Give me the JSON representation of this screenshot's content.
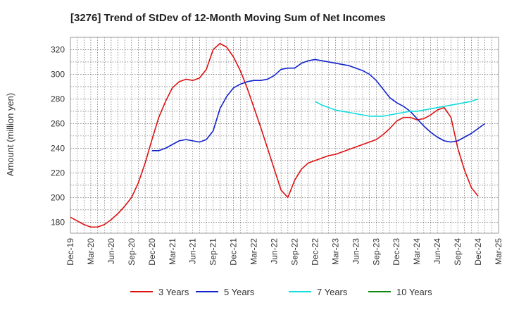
{
  "chart_data": {
    "type": "line",
    "title": "[3276]  Trend of StDev of 12-Month Moving Sum of Net Incomes",
    "ylabel": "Amount (million yen)",
    "xlabel": "",
    "ylim": [
      171,
      330
    ],
    "yticks": [
      180,
      200,
      220,
      240,
      260,
      280,
      300,
      320
    ],
    "x_tick_labels": [
      "Dec-19",
      "Mar-20",
      "Jun-20",
      "Sep-20",
      "Dec-20",
      "Mar-21",
      "Jun-21",
      "Sep-21",
      "Dec-21",
      "Mar-22",
      "Jun-22",
      "Sep-22",
      "Dec-22",
      "Mar-23",
      "Jun-23",
      "Sep-23",
      "Dec-23",
      "Mar-24",
      "Jun-24",
      "Sep-24",
      "Dec-24",
      "Mar-25"
    ],
    "grid": true,
    "legend_position": "bottom",
    "series": [
      {
        "name": "3 Years",
        "color": "#dd1111",
        "start_month": 0,
        "values": [
          184,
          181,
          178,
          176,
          176,
          178,
          182,
          187,
          193,
          200,
          212,
          228,
          247,
          265,
          278,
          289,
          294,
          296,
          295,
          297,
          304,
          320,
          325,
          322,
          314,
          303,
          289,
          273,
          257,
          240,
          223,
          206,
          200,
          214,
          223,
          228,
          230,
          232,
          234,
          235,
          237,
          239,
          241,
          243,
          245,
          247,
          251,
          256,
          262,
          265,
          265,
          263,
          264,
          267,
          271,
          273,
          265,
          240,
          222,
          208,
          201
        ]
      },
      {
        "name": "5 Years",
        "color": "#1122cc",
        "start_month": 12,
        "values": [
          238,
          238,
          240,
          243,
          246,
          247,
          246,
          245,
          247,
          254,
          272,
          282,
          289,
          292,
          294,
          295,
          295,
          296,
          299,
          304,
          305,
          305,
          309,
          311,
          312,
          311,
          310,
          309,
          308,
          307,
          305,
          303,
          300,
          295,
          288,
          281,
          277,
          274,
          270,
          264,
          258,
          253,
          249,
          246,
          245,
          246,
          249,
          252,
          256,
          260
        ]
      },
      {
        "name": "7 Years",
        "color": "#11dddd",
        "start_month": 36,
        "values": [
          278,
          275,
          273,
          271,
          270,
          269,
          268,
          267,
          266,
          266,
          266,
          267,
          268,
          269,
          270,
          270,
          271,
          272,
          273,
          274,
          275,
          276,
          277,
          278,
          280
        ]
      },
      {
        "name": "10 Years",
        "color": "#118811",
        "start_month": 0,
        "values": []
      }
    ]
  }
}
